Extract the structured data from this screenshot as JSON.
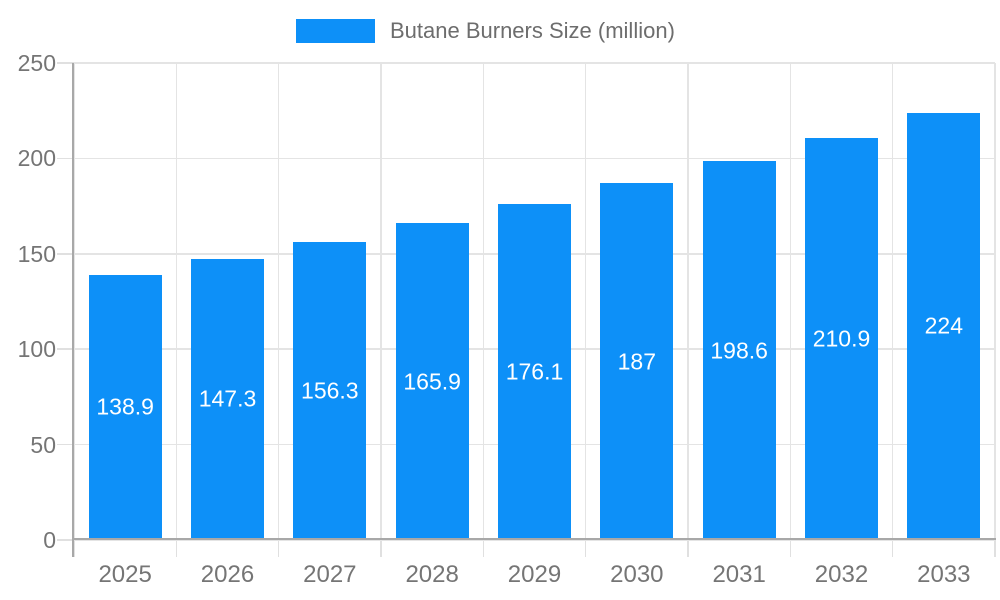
{
  "chart_data": {
    "type": "bar",
    "title": "",
    "legend": {
      "label": "Butane Burners Size (million)",
      "position": "top-center"
    },
    "categories": [
      "2025",
      "2026",
      "2027",
      "2028",
      "2029",
      "2030",
      "2031",
      "2032",
      "2033"
    ],
    "series": [
      {
        "name": "Butane Burners Size (million)",
        "values": [
          138.9,
          147.3,
          156.3,
          165.9,
          176.1,
          187,
          198.6,
          210.9,
          224
        ],
        "value_labels": [
          "138.9",
          "147.3",
          "156.3",
          "165.9",
          "176.1",
          "187",
          "198.6",
          "210.9",
          "224"
        ]
      }
    ],
    "xlabel": "",
    "ylabel": "",
    "ylim": [
      0,
      250
    ],
    "ytick_step": 50,
    "ytick_labels": [
      "0",
      "50",
      "100",
      "150",
      "200",
      "250"
    ],
    "grid": "horizontal and vertical light gray gridlines",
    "value_label_position": "inside-center",
    "colors": {
      "bar": "#0d90f8",
      "grid_line": "#e4e4e4",
      "axis_line": "#a8a8a8",
      "axis_label_text": "#757575",
      "legend_text": "#6d6d6d",
      "value_label_text": "#ffffff",
      "background": "#ffffff"
    }
  }
}
